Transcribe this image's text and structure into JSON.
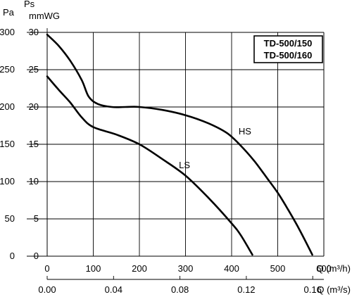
{
  "chart_data": {
    "type": "line",
    "legend": [
      "TD-500/150",
      "TD-500/160"
    ],
    "y_axes": {
      "left_outer": {
        "label": "Pa",
        "ticks": [
          "0",
          "50",
          "100",
          "150",
          "200",
          "250",
          "300"
        ],
        "range": [
          0,
          300
        ]
      },
      "left_inner": {
        "label_top": "Ps",
        "label": "mmWG",
        "ticks": [
          "0",
          "5",
          "10",
          "15",
          "20",
          "25",
          "30"
        ],
        "range": [
          0,
          30
        ]
      }
    },
    "x_axes": {
      "primary": {
        "label": "Q (m³/h)",
        "ticks": [
          "0",
          "100",
          "200",
          "300",
          "400",
          "500",
          "600"
        ],
        "range": [
          0,
          600
        ]
      },
      "secondary": {
        "label": "Q (m³/s)",
        "ticks": [
          "0.00",
          "0.04",
          "0.08",
          "0.12",
          "0.16"
        ],
        "range": [
          0,
          0.1667
        ]
      }
    },
    "grid": true,
    "series": [
      {
        "name": "HS",
        "x": [
          0,
          25,
          50,
          75,
          90,
          110,
          140,
          170,
          200,
          250,
          300,
          350,
          390,
          420,
          450,
          480,
          500,
          520,
          545,
          575
        ],
        "y": [
          297,
          282,
          262,
          236,
          214,
          204,
          200,
          200,
          200,
          196,
          189,
          178,
          165,
          148,
          127,
          102,
          85,
          65,
          38,
          2
        ]
      },
      {
        "name": "LS",
        "x": [
          0,
          25,
          50,
          75,
          100,
          150,
          200,
          250,
          300,
          350,
          400,
          420,
          445
        ],
        "y": [
          241,
          223,
          206,
          186,
          173,
          163,
          150,
          130,
          108,
          78,
          44,
          28,
          2
        ]
      }
    ]
  }
}
